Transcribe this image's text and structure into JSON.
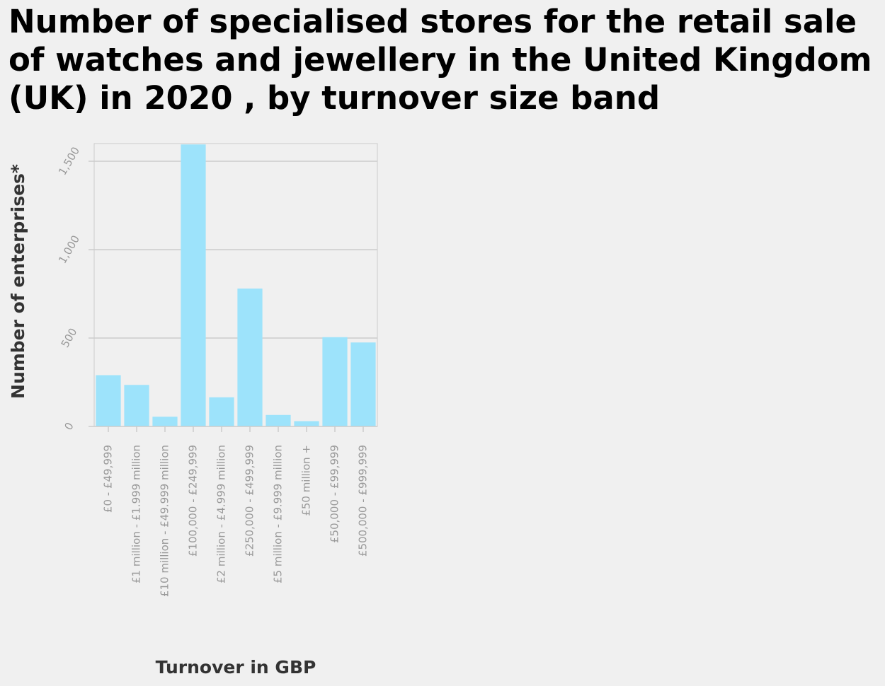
{
  "chart_data": {
    "type": "bar",
    "title": "Number of specialised stores for the retail sale of watches and jewellery in the United Kingdom (UK) in 2020 , by turnover size band",
    "xlabel": "Turnover in GBP",
    "ylabel": "Number of enterprises*",
    "categories": [
      "£0 - £49,999",
      "£1 million - £1.999 million",
      "£10 million - £49.999 million",
      "£100,000 - £249,999",
      "£2 million - £4.999 million",
      "£250,000 - £499,999",
      "£5 million - £9.999 million",
      "£50 million +",
      "£50,000 - £99,999",
      "£500,000 - £999,999"
    ],
    "values": [
      290,
      235,
      55,
      1595,
      165,
      780,
      65,
      30,
      505,
      475
    ],
    "ylim": [
      0,
      1600
    ],
    "yticks": [
      0,
      500,
      1000,
      1500
    ],
    "ytick_labels": [
      "0",
      "500",
      "1,000",
      "1,500"
    ],
    "grid": true,
    "bar_color": "#9de3fb"
  }
}
